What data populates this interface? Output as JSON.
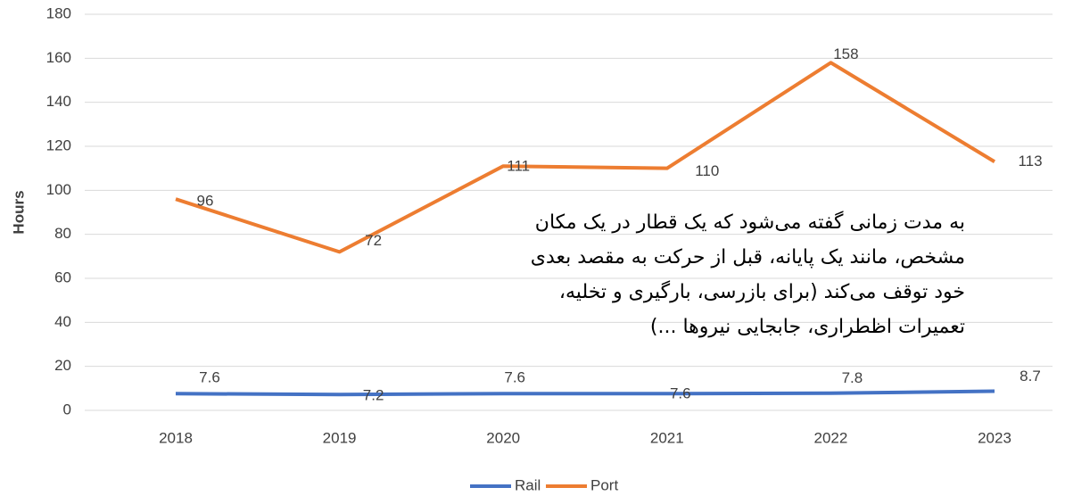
{
  "chart_data": {
    "type": "line",
    "ylabel": "Hours",
    "categories": [
      "2018",
      "2019",
      "2020",
      "2021",
      "2022",
      "2023"
    ],
    "series": [
      {
        "name": "Rail",
        "color": "#4472c4",
        "values": [
          7.6,
          7.2,
          7.6,
          7.6,
          7.8,
          8.7
        ]
      },
      {
        "name": "Port",
        "color": "#ed7d31",
        "values": [
          96,
          72,
          111,
          110,
          158,
          113
        ]
      }
    ],
    "ylim": [
      0,
      180
    ],
    "yticks": [
      0,
      20,
      40,
      60,
      80,
      100,
      120,
      140,
      160,
      180
    ],
    "grid": true,
    "legend": "bottom",
    "annotation": [
      "به مدت زمانی گفته می‌شود که یک قطار در یک مکان",
      "مشخص، مانند یک پایانه، قبل از حرکت به مقصد بعدی",
      "خود توقف می‌کند (برای بازرسی، بارگیری و تخلیه،",
      "تعمیرات اظطراری، جابجایی نیروها ...)"
    ]
  }
}
